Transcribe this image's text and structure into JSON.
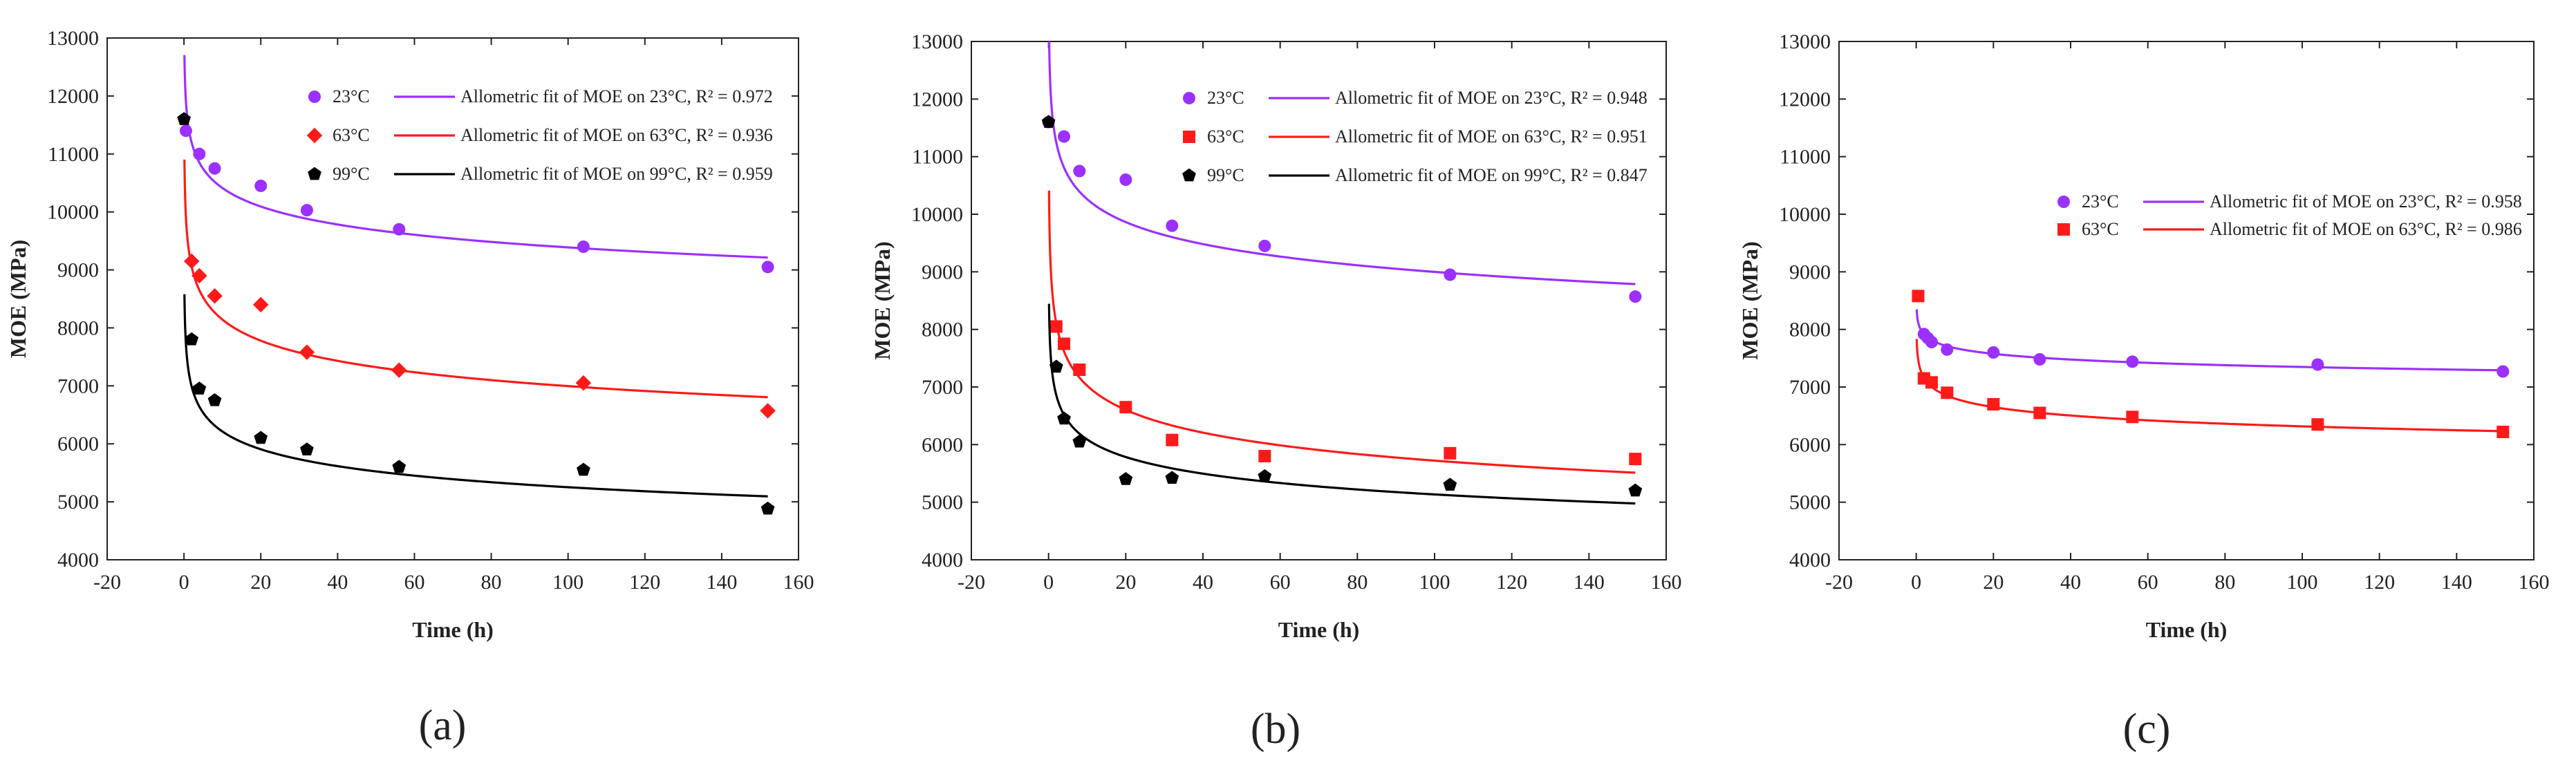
{
  "figure": {
    "panel_labels": [
      "(a)",
      "(b)",
      "(c)"
    ]
  },
  "chart_data": [
    {
      "type": "scatter",
      "panel": "(a)",
      "xlabel": "Time (h)",
      "ylabel": "MOE (MPa)",
      "xlim": [
        -20,
        160
      ],
      "ylim": [
        4000,
        13000
      ],
      "xticks": [
        -20,
        0,
        20,
        40,
        60,
        80,
        100,
        120,
        140,
        160
      ],
      "yticks": [
        4000,
        5000,
        6000,
        7000,
        8000,
        9000,
        10000,
        11000,
        12000,
        13000
      ],
      "legend_position": "top-right",
      "series": [
        {
          "name": "23°C",
          "fit_label": "Allometric fit of MOE on 23°C, R² = 0.972",
          "color": "#9b30ff",
          "marker": "circle",
          "x": [
            0.5,
            4,
            8,
            20,
            32,
            56,
            104,
            152
          ],
          "y": [
            11400,
            11000,
            10750,
            10450,
            10030,
            9700,
            9400,
            9050
          ],
          "fit": {
            "a": 11550,
            "b": -0.045
          }
        },
        {
          "name": "63°C",
          "fit_label": "Allometric fit of MOE on 63°C, R² = 0.936",
          "color": "#ff1a1a",
          "marker": "diamond",
          "x": [
            2,
            4,
            8,
            20,
            32,
            56,
            104,
            152
          ],
          "y": [
            9150,
            8900,
            8550,
            8400,
            7580,
            7270,
            7050,
            6570
          ],
          "fit": {
            "a": 9480,
            "b": -0.066
          }
        },
        {
          "name": "99°C",
          "fit_label": "Allometric fit of MOE on 99°C, R² = 0.959",
          "color": "#000000",
          "marker": "pentagon",
          "x": [
            0,
            2,
            4,
            8,
            20,
            32,
            56,
            104,
            152
          ],
          "y": [
            11600,
            7800,
            6950,
            6750,
            6100,
            5900,
            5600,
            5550,
            4880
          ],
          "fit": {
            "a": 7350,
            "b": -0.073
          }
        }
      ]
    },
    {
      "type": "scatter",
      "panel": "(b)",
      "xlabel": "Time (h)",
      "ylabel": "MOE (MPa)",
      "xlim": [
        -20,
        160
      ],
      "ylim": [
        4000,
        13000
      ],
      "xticks": [
        -20,
        0,
        20,
        40,
        60,
        80,
        100,
        120,
        140,
        160
      ],
      "yticks": [
        4000,
        5000,
        6000,
        7000,
        8000,
        9000,
        10000,
        11000,
        12000,
        13000
      ],
      "legend_position": "top-right",
      "series": [
        {
          "name": "23°C",
          "fit_label": "Allometric fit of MOE on 23°C, R² = 0.948",
          "color": "#9b30ff",
          "marker": "circle",
          "x": [
            0,
            4,
            8,
            20,
            32,
            56,
            104,
            152
          ],
          "y": [
            11600,
            11350,
            10750,
            10600,
            9800,
            9450,
            8950,
            8570
          ],
          "fit": {
            "a": 11700,
            "b": -0.057
          }
        },
        {
          "name": "63°C",
          "fit_label": "Allometric fit of MOE on 63°C, R² = 0.951",
          "color": "#ff1a1a",
          "marker": "square",
          "x": [
            2,
            4,
            8,
            20,
            32,
            56,
            104,
            152
          ],
          "y": [
            8050,
            7750,
            7300,
            6650,
            6080,
            5800,
            5850,
            5750
          ],
          "fit": {
            "a": 8620,
            "b": -0.089
          }
        },
        {
          "name": "99°C",
          "fit_label": "Allometric fit of MOE on 99°C, R² = 0.847",
          "color": "#000000",
          "marker": "pentagon",
          "x": [
            0,
            2,
            4,
            8,
            20,
            32,
            56,
            104,
            152
          ],
          "y": [
            11600,
            7350,
            6450,
            6050,
            5400,
            5420,
            5450,
            5300,
            5200
          ],
          "fit": {
            "a": 7220,
            "b": -0.074
          }
        }
      ]
    },
    {
      "type": "scatter",
      "panel": "(c)",
      "xlabel": "Time (h)",
      "ylabel": "MOE (MPa)",
      "xlim": [
        -20,
        160
      ],
      "ylim": [
        4000,
        13000
      ],
      "xticks": [
        -20,
        0,
        20,
        40,
        60,
        80,
        100,
        120,
        140,
        160
      ],
      "yticks": [
        4000,
        5000,
        6000,
        7000,
        8000,
        9000,
        10000,
        11000,
        12000,
        13000
      ],
      "legend_position": "center-right",
      "series": [
        {
          "name": "23°C",
          "fit_label": "Allometric fit of MOE on 23°C, R² = 0.958",
          "color": "#9b30ff",
          "marker": "circle",
          "x": [
            2,
            3,
            4,
            8,
            20,
            32,
            56,
            104,
            152
          ],
          "y": [
            7920,
            7850,
            7780,
            7650,
            7600,
            7480,
            7440,
            7390,
            7270
          ],
          "fit": {
            "a": 8020,
            "b": -0.019
          }
        },
        {
          "name": "63°C",
          "fit_label": "Allometric fit of MOE on 63°C, R² = 0.986",
          "color": "#ff1a1a",
          "marker": "square",
          "x": [
            0.5,
            2,
            4,
            8,
            20,
            32,
            56,
            104,
            152
          ],
          "y": [
            8580,
            7150,
            7080,
            6900,
            6700,
            6550,
            6480,
            6350,
            6220
          ],
          "fit": {
            "a": 7320,
            "b": -0.032
          }
        }
      ]
    }
  ]
}
